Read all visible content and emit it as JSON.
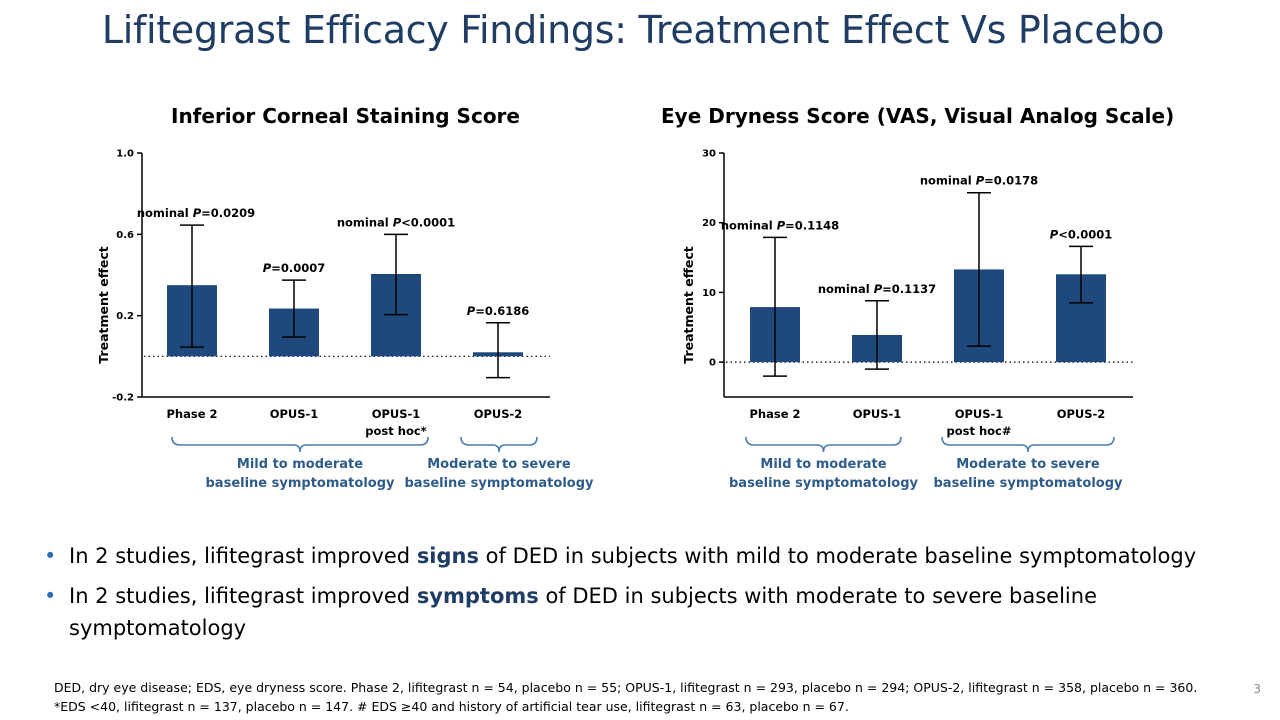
{
  "title": "Lifitegrast Efficacy Findings: Treatment Effect Vs Placebo",
  "chart_data": [
    {
      "type": "bar",
      "title": "Inferior Corneal Staining Score",
      "ylabel": "Treatment effect",
      "ylim": [
        -0.2,
        1.0
      ],
      "yticks": [
        "1.0",
        "0.6",
        "0.2",
        "-0.2"
      ],
      "ytick_values": [
        1.0,
        0.6,
        0.2,
        -0.2
      ],
      "categories": [
        "Phase 2",
        "OPUS-1",
        "OPUS-1",
        "OPUS-2"
      ],
      "category_sublabels": [
        "",
        "",
        "post hoc*",
        ""
      ],
      "values": [
        0.35,
        0.235,
        0.405,
        0.02
      ],
      "error_low": [
        0.045,
        0.095,
        0.205,
        -0.105
      ],
      "error_high": [
        0.645,
        0.375,
        0.6,
        0.165
      ],
      "annotations": [
        {
          "prefix": "nominal ",
          "p": "P",
          "suffix": "=0.0209"
        },
        {
          "prefix": "",
          "p": "P",
          "suffix": "=0.0007"
        },
        {
          "prefix": "nominal ",
          "p": "P",
          "suffix": "<0.0001"
        },
        {
          "prefix": "",
          "p": "P",
          "suffix": "=0.6186"
        }
      ],
      "reference_line": 0,
      "groups": [
        {
          "line1": "Mild to moderate",
          "line2": "baseline symptomatology"
        },
        {
          "line1": "Moderate to severe",
          "line2": "baseline symptomatology"
        }
      ],
      "bar_color": "#1f497d"
    },
    {
      "type": "bar",
      "title": "Eye Dryness Score (VAS, Visual Analog Scale)",
      "ylabel": "Treatment effect",
      "ylim": [
        -5,
        30
      ],
      "yticks": [
        "30",
        "20",
        "10",
        "0"
      ],
      "ytick_values": [
        30,
        20,
        10,
        0
      ],
      "categories": [
        "Phase 2",
        "OPUS-1",
        "OPUS-1",
        "OPUS-2"
      ],
      "category_sublabels": [
        "",
        "",
        "post hoc#",
        ""
      ],
      "values": [
        7.9,
        3.9,
        13.3,
        12.6
      ],
      "error_low": [
        -2.0,
        -1.0,
        2.3,
        8.5
      ],
      "error_high": [
        17.9,
        8.8,
        24.3,
        16.6
      ],
      "annotations": [
        {
          "prefix": "nominal ",
          "p": "P",
          "suffix": "=0.1148"
        },
        {
          "prefix": "nominal ",
          "p": "P",
          "suffix": "=0.1137"
        },
        {
          "prefix": "nominal ",
          "p": "P",
          "suffix": "=0.0178"
        },
        {
          "prefix": "",
          "p": "P",
          "suffix": "<0.0001"
        }
      ],
      "reference_line": 0,
      "groups": [
        {
          "line1": "Mild to moderate",
          "line2": "baseline symptomatology"
        },
        {
          "line1": "Moderate to severe",
          "line2": "baseline symptomatology"
        }
      ],
      "bar_color": "#1f497d"
    }
  ],
  "bullets": [
    {
      "before": "In 2 studies, lifitegrast improved ",
      "emphasis": "signs",
      "after": " of DED in subjects with mild to moderate baseline symptomatology"
    },
    {
      "before": "In 2 studies, lifitegrast improved ",
      "emphasis": "symptoms",
      "after": " of DED in subjects with moderate to severe baseline symptomatology"
    }
  ],
  "footnote_line1": "DED, dry eye disease; EDS, eye dryness score. Phase 2, lifitegrast n = 54, placebo n = 55; OPUS-1, lifitegrast n = 293, placebo n = 294; OPUS-2, lifitegrast n = 358, placebo n = 360.",
  "footnote_line2": "*EDS <40, lifitegrast n = 137, placebo n = 147. # EDS ≥40 and history of artificial tear use, lifitegrast n = 63, placebo n = 67.",
  "page_number": "3",
  "colors": {
    "title": "#1f3c64",
    "group_label": "#2e5c8a",
    "bullet": "#2e6cb5"
  }
}
